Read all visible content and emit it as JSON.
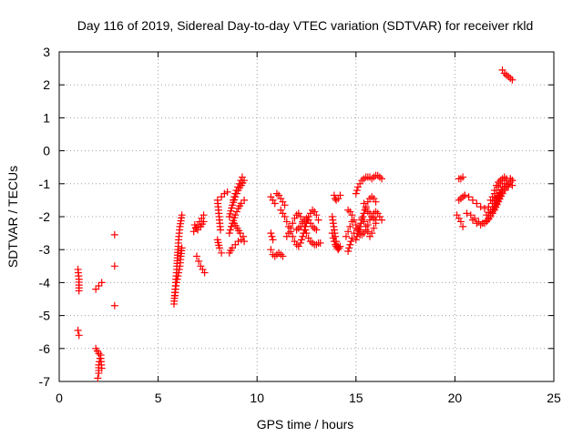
{
  "chart_data": {
    "type": "scatter",
    "title": "Day 116 of 2019, Sidereal Day-to-day VTEC variation (SDTVAR) for receiver rkld",
    "xlabel": "GPS time / hours",
    "ylabel": "SDTVAR / TECUs",
    "xlim": [
      0,
      25
    ],
    "ylim": [
      -7,
      3
    ],
    "xticks": [
      0,
      5,
      10,
      15,
      20,
      25
    ],
    "xtick_labels": [
      "0",
      "5",
      "10",
      "15",
      "20",
      "25"
    ],
    "yticks": [
      -7,
      -6,
      -5,
      -4,
      -3,
      -2,
      -1,
      0,
      1,
      2,
      3
    ],
    "ytick_labels": [
      "-7",
      "-6",
      "-5",
      "-4",
      "-3",
      "-2",
      "-1",
      "0",
      "1",
      "2",
      "3"
    ],
    "grid": true,
    "marker": "+",
    "color": "#ff0000",
    "segments": [
      {
        "x": [
          0.95,
          1.0,
          1.0
        ],
        "y": [
          -3.6,
          -3.9,
          -4.25
        ]
      },
      {
        "x": [
          0.95,
          1.0
        ],
        "y": [
          -5.45,
          -5.6
        ]
      },
      {
        "x": [
          1.85,
          2.0,
          2.15
        ],
        "y": [
          -4.2,
          -4.1,
          -4.0
        ]
      },
      {
        "x": [
          1.85,
          2.0,
          2.1,
          2.15
        ],
        "y": [
          -6.0,
          -6.15,
          -6.3,
          -6.6
        ]
      },
      {
        "x": [
          1.95,
          2.0,
          2.0,
          2.1
        ],
        "y": [
          -6.9,
          -6.75,
          -6.5,
          -6.2
        ]
      },
      {
        "x": [
          2.8
        ],
        "y": [
          -2.55
        ]
      },
      {
        "x": [
          2.8
        ],
        "y": [
          -3.5
        ]
      },
      {
        "x": [
          2.8
        ],
        "y": [
          -4.7
        ]
      },
      {
        "x": [
          5.8,
          5.85,
          5.9,
          5.95,
          6.0,
          6.05,
          6.1,
          6.2
        ],
        "y": [
          -4.65,
          -4.3,
          -3.9,
          -3.5,
          -3.0,
          -2.6,
          -2.3,
          -1.95
        ]
      },
      {
        "x": [
          5.85,
          5.9,
          6.0,
          6.1,
          6.15,
          6.2
        ],
        "y": [
          -4.4,
          -4.1,
          -3.8,
          -3.5,
          -3.2,
          -2.95
        ]
      },
      {
        "x": [
          6.95,
          7.05,
          7.15,
          7.25,
          7.35
        ],
        "y": [
          -3.2,
          -3.35,
          -3.5,
          -3.6,
          -3.7
        ]
      },
      {
        "x": [
          6.8,
          6.9,
          7.0,
          7.1,
          7.2,
          7.3
        ],
        "y": [
          -2.45,
          -2.35,
          -2.25,
          -2.15,
          -2.05,
          -1.95
        ]
      },
      {
        "x": [
          6.85,
          7.0,
          7.15,
          7.3
        ],
        "y": [
          -2.25,
          -2.4,
          -2.3,
          -2.15
        ]
      },
      {
        "x": [
          8.0,
          8.05,
          8.1,
          8.15
        ],
        "y": [
          -1.5,
          -1.8,
          -2.1,
          -2.4
        ]
      },
      {
        "x": [
          8.0,
          8.1,
          8.2
        ],
        "y": [
          -2.7,
          -2.95,
          -3.1
        ]
      },
      {
        "x": [
          8.2,
          8.35,
          8.5
        ],
        "y": [
          -1.4,
          -1.3,
          -1.25
        ]
      },
      {
        "x": [
          8.6,
          8.75,
          8.9,
          9.05,
          9.2,
          9.35
        ],
        "y": [
          -2.5,
          -2.2,
          -1.95,
          -1.75,
          -1.6,
          -1.5
        ]
      },
      {
        "x": [
          8.6,
          8.75,
          8.9,
          9.05,
          9.2,
          9.35
        ],
        "y": [
          -2.0,
          -1.65,
          -1.4,
          -1.2,
          -1.05,
          -0.9
        ]
      },
      {
        "x": [
          8.8,
          8.95,
          9.1,
          9.25
        ],
        "y": [
          -1.5,
          -1.2,
          -1.0,
          -0.8
        ]
      },
      {
        "x": [
          8.6,
          8.75,
          8.9,
          9.05,
          9.2,
          9.35
        ],
        "y": [
          -3.1,
          -2.95,
          -2.85,
          -2.75,
          -2.7,
          -2.75
        ]
      },
      {
        "x": [
          8.7,
          8.85,
          9.0,
          9.15,
          9.3
        ],
        "y": [
          -2.3,
          -2.2,
          -2.35,
          -2.5,
          -2.6
        ]
      },
      {
        "x": [
          10.7,
          10.8,
          10.9
        ],
        "y": [
          -1.4,
          -1.5,
          -1.6
        ]
      },
      {
        "x": [
          10.7,
          10.75,
          10.8
        ],
        "y": [
          -2.5,
          -2.6,
          -2.7
        ]
      },
      {
        "x": [
          10.7,
          10.8,
          10.9,
          11.0,
          11.1,
          11.2,
          11.3
        ],
        "y": [
          -3.0,
          -3.15,
          -3.2,
          -3.15,
          -3.1,
          -3.15,
          -3.2
        ]
      },
      {
        "x": [
          11.0,
          11.1,
          11.2,
          11.3,
          11.4
        ],
        "y": [
          -1.3,
          -1.35,
          -1.45,
          -1.55,
          -1.65
        ]
      },
      {
        "x": [
          11.2,
          11.3,
          11.4,
          11.5,
          11.6,
          11.7,
          11.8,
          11.9,
          12.0,
          12.1,
          12.2,
          12.3,
          12.4,
          12.5,
          12.6,
          12.7,
          12.8,
          12.9,
          13.0,
          13.1
        ],
        "y": [
          -1.8,
          -1.9,
          -2.0,
          -2.15,
          -2.3,
          -2.45,
          -2.6,
          -2.75,
          -2.85,
          -2.9,
          -2.8,
          -2.6,
          -2.4,
          -2.2,
          -2.0,
          -1.9,
          -1.8,
          -1.85,
          -1.95,
          -2.1
        ]
      },
      {
        "x": [
          11.5,
          11.6,
          11.7,
          11.8,
          11.9,
          12.0,
          12.1,
          12.2,
          12.3,
          12.4,
          12.5,
          12.6,
          12.7,
          12.8,
          12.9,
          13.0,
          13.1,
          13.2
        ],
        "y": [
          -2.6,
          -2.5,
          -2.35,
          -2.2,
          -2.05,
          -1.95,
          -1.9,
          -2.0,
          -2.15,
          -2.3,
          -2.5,
          -2.65,
          -2.75,
          -2.8,
          -2.85,
          -2.85,
          -2.8,
          -2.8
        ]
      },
      {
        "x": [
          12.0,
          12.1,
          12.2,
          12.3,
          12.4,
          12.5,
          12.6,
          12.7,
          12.8,
          12.9,
          13.0
        ],
        "y": [
          -2.4,
          -2.35,
          -2.3,
          -2.2,
          -2.1,
          -2.05,
          -2.1,
          -2.2,
          -2.3,
          -2.35,
          -2.4
        ]
      },
      {
        "x": [
          13.9,
          13.95,
          14.0,
          14.1,
          14.2
        ],
        "y": [
          -1.35,
          -1.45,
          -1.5,
          -1.45,
          -1.35
        ]
      },
      {
        "x": [
          13.8,
          13.85,
          13.9,
          13.95,
          14.0,
          14.05,
          14.1,
          14.15,
          14.2
        ],
        "y": [
          -2.0,
          -2.2,
          -2.4,
          -2.6,
          -2.75,
          -2.9,
          -3.0,
          -2.95,
          -2.9
        ]
      },
      {
        "x": [
          13.8,
          13.85,
          13.9,
          13.95,
          14.0,
          14.05,
          14.1
        ],
        "y": [
          -2.5,
          -2.65,
          -2.75,
          -2.85,
          -2.9,
          -2.95,
          -2.9
        ]
      },
      {
        "x": [
          14.6,
          14.7,
          14.8,
          14.9,
          15.0
        ],
        "y": [
          -3.05,
          -2.85,
          -2.65,
          -2.5,
          -2.35
        ]
      },
      {
        "x": [
          14.6,
          14.7,
          14.8,
          14.9,
          15.0,
          15.1,
          15.2
        ],
        "y": [
          -1.8,
          -1.85,
          -1.95,
          -2.1,
          -2.25,
          -2.4,
          -2.55
        ]
      },
      {
        "x": [
          14.5,
          14.6,
          14.7,
          14.8
        ],
        "y": [
          -2.6,
          -2.45,
          -2.3,
          -2.15
        ]
      },
      {
        "x": [
          15.0,
          15.1,
          15.2,
          15.3,
          15.4,
          15.5,
          15.6,
          15.7,
          15.8,
          15.9,
          16.0,
          16.1,
          16.2,
          16.3
        ],
        "y": [
          -1.3,
          -1.1,
          -1.0,
          -0.9,
          -0.85,
          -0.8,
          -0.8,
          -0.8,
          -0.85,
          -0.8,
          -0.75,
          -0.75,
          -0.8,
          -0.85
        ]
      },
      {
        "x": [
          15.0,
          15.1,
          15.2,
          15.3,
          15.4,
          15.5,
          15.6,
          15.7,
          15.8,
          15.9,
          16.0
        ],
        "y": [
          -2.7,
          -2.5,
          -2.3,
          -2.1,
          -1.9,
          -1.7,
          -1.55,
          -1.45,
          -1.4,
          -1.45,
          -1.55
        ]
      },
      {
        "x": [
          15.1,
          15.2,
          15.3,
          15.4,
          15.5,
          15.6,
          15.7,
          15.8,
          15.9,
          16.0,
          16.1,
          16.2,
          16.3
        ],
        "y": [
          -2.35,
          -2.45,
          -2.55,
          -2.5,
          -2.4,
          -2.25,
          -2.1,
          -2.0,
          -1.9,
          -1.85,
          -1.9,
          -2.0,
          -2.1
        ]
      },
      {
        "x": [
          15.3,
          15.4,
          15.5,
          15.6,
          15.7,
          15.8,
          15.9,
          16.0
        ],
        "y": [
          -2.05,
          -2.15,
          -2.3,
          -2.45,
          -2.6,
          -2.5,
          -2.35,
          -2.2
        ]
      },
      {
        "x": [
          15.4,
          15.5,
          15.6,
          15.7,
          15.8,
          15.9,
          16.0
        ],
        "y": [
          -1.6,
          -1.75,
          -1.85,
          -1.9,
          -2.0,
          -2.05,
          -2.1
        ]
      },
      {
        "x": [
          20.2,
          20.3,
          20.4
        ],
        "y": [
          -0.85,
          -0.85,
          -0.8
        ]
      },
      {
        "x": [
          20.2,
          20.3,
          20.4,
          20.5
        ],
        "y": [
          -1.5,
          -1.45,
          -1.4,
          -1.35
        ]
      },
      {
        "x": [
          20.1,
          20.2,
          20.3,
          20.4
        ],
        "y": [
          -1.95,
          -2.05,
          -2.15,
          -2.3
        ]
      },
      {
        "x": [
          20.5,
          20.7,
          20.9,
          21.1,
          21.3,
          21.5,
          21.7,
          21.9,
          22.1,
          22.3,
          22.5,
          22.7,
          22.9
        ],
        "y": [
          -1.35,
          -1.4,
          -1.5,
          -1.6,
          -1.7,
          -1.75,
          -1.7,
          -1.6,
          -1.45,
          -1.3,
          -1.2,
          -1.1,
          -1.05
        ]
      },
      {
        "x": [
          20.6,
          20.8,
          21.0,
          21.2,
          21.4,
          21.6,
          21.8,
          22.0,
          22.2,
          22.4,
          22.6,
          22.8
        ],
        "y": [
          -1.9,
          -1.95,
          -2.05,
          -2.15,
          -2.2,
          -2.15,
          -2.0,
          -1.8,
          -1.55,
          -1.3,
          -1.1,
          -0.95
        ]
      },
      {
        "x": [
          20.9,
          21.1,
          21.3,
          21.5,
          21.7,
          21.9,
          22.1,
          22.3,
          22.5,
          22.7,
          22.9
        ],
        "y": [
          -2.1,
          -2.2,
          -2.25,
          -2.2,
          -2.05,
          -1.85,
          -1.6,
          -1.35,
          -1.15,
          -1.0,
          -0.9
        ]
      },
      {
        "x": [
          21.6,
          21.8,
          22.0,
          22.2,
          22.4,
          22.6,
          22.8
        ],
        "y": [
          -1.95,
          -1.8,
          -1.6,
          -1.35,
          -1.1,
          -0.9,
          -0.85
        ]
      },
      {
        "x": [
          21.8,
          22.0,
          22.2,
          22.4,
          22.6,
          22.8,
          22.9
        ],
        "y": [
          -1.5,
          -1.3,
          -1.1,
          -0.9,
          -0.85,
          -0.85,
          -0.9
        ]
      },
      {
        "x": [
          22.0,
          22.1,
          22.2,
          22.3,
          22.4,
          22.5
        ],
        "y": [
          -1.2,
          -1.05,
          -0.95,
          -0.9,
          -0.85,
          -0.8
        ]
      },
      {
        "x": [
          22.4,
          22.5,
          22.6,
          22.7,
          22.8,
          22.9
        ],
        "y": [
          2.45,
          2.35,
          2.3,
          2.25,
          2.2,
          2.15
        ]
      }
    ]
  }
}
